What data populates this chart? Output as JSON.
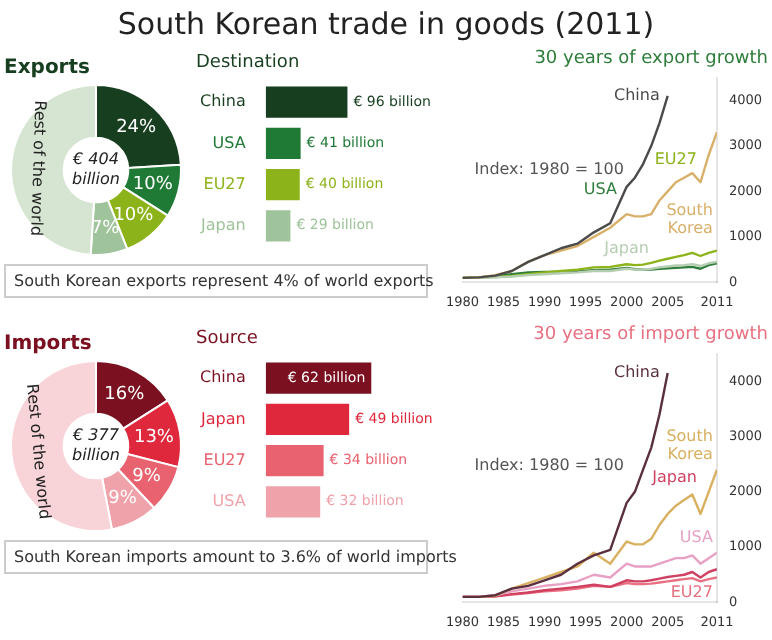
{
  "chart_data": [
    {
      "type": "donut",
      "title": "South Korean trade in goods (2011)",
      "subtitle": "Exports",
      "categories": [
        null,
        null,
        null,
        null,
        "Rest of the world"
      ],
      "values": [
        24,
        10,
        10,
        7,
        49
      ],
      "colors": [
        "#173f1f",
        "#1f7a35",
        "#8db31a",
        "#9fc39a",
        "#d6e5d2"
      ],
      "value_labels": [
        "24%",
        "10%",
        "10%",
        "7%",
        null
      ],
      "annotations": [
        "€ 404 billion",
        "South Korean exports represent 4% of world exports"
      ]
    },
    {
      "type": "bar",
      "orientation": "horizontal",
      "title": "Destination",
      "categories": [
        "China",
        "USA",
        "EU27",
        "Japan"
      ],
      "values": [
        96,
        41,
        40,
        29
      ],
      "colors": [
        "#173f1f",
        "#1f7a35",
        "#8db31a",
        "#9fc39a"
      ],
      "value_labels": [
        "€ 96 billion",
        "€ 41 billion",
        "€ 40 billion",
        "€ 29 billion"
      ],
      "tick_labels": "y"
    },
    {
      "type": "line",
      "title": "30 years of export growth",
      "x": [
        1980,
        1982,
        1984,
        1986,
        1988,
        1990,
        1992,
        1994,
        1996,
        1998,
        2000,
        2001,
        2002,
        2003,
        2004,
        2005,
        2006,
        2007,
        2008,
        2009,
        2010,
        2011
      ],
      "xlim": [
        1980,
        2011
      ],
      "xticks": [
        1980,
        1985,
        1990,
        1995,
        2000,
        2005,
        2011
      ],
      "ylim": [
        0,
        4500
      ],
      "yticks": [
        0,
        1000,
        2000,
        3000,
        4000
      ],
      "grid": false,
      "annotations": [
        "Index: 1980 = 100"
      ],
      "series": [
        {
          "name": "China",
          "color": "#4a4a4a",
          "values": [
            100,
            110,
            150,
            250,
            450,
            600,
            750,
            850,
            1100,
            1300,
            2100,
            2300,
            2600,
            3000,
            3500,
            4100,
            null,
            null,
            null,
            null,
            null,
            null
          ]
        },
        {
          "name": "South Korea",
          "color": "#d9b06a",
          "values": [
            100,
            110,
            160,
            250,
            450,
            600,
            700,
            800,
            1000,
            1200,
            1500,
            1450,
            1450,
            1500,
            1800,
            2000,
            2200,
            2300,
            2400,
            2200,
            2800,
            3300
          ]
        },
        {
          "name": "Japan",
          "color": "#b5cdb0",
          "values": [
            100,
            100,
            110,
            130,
            160,
            180,
            200,
            220,
            250,
            250,
            300,
            280,
            280,
            300,
            330,
            350,
            370,
            380,
            400,
            360,
            420,
            450
          ]
        },
        {
          "name": "EU27",
          "color": "#8db31a",
          "values": [
            100,
            110,
            120,
            140,
            180,
            220,
            250,
            280,
            330,
            340,
            400,
            380,
            390,
            430,
            480,
            520,
            560,
            600,
            650,
            580,
            650,
            700
          ]
        },
        {
          "name": "USA",
          "color": "#2e7d3a",
          "values": [
            100,
            110,
            140,
            180,
            220,
            230,
            230,
            240,
            270,
            280,
            320,
            290,
            280,
            280,
            300,
            310,
            320,
            330,
            340,
            300,
            380,
            420
          ]
        }
      ]
    },
    {
      "type": "donut",
      "title": "Imports",
      "categories": [
        null,
        null,
        null,
        null,
        "Rest of the world"
      ],
      "values": [
        16,
        13,
        9,
        9,
        53
      ],
      "colors": [
        "#7a1020",
        "#e0283c",
        "#e8626f",
        "#f0a2aa",
        "#f8d3d7"
      ],
      "value_labels": [
        "16%",
        "13%",
        "9%",
        "9%",
        null
      ],
      "annotations": [
        "€ 377 billion",
        "South Korean imports amount to 3.6% of world imports"
      ]
    },
    {
      "type": "bar",
      "orientation": "horizontal",
      "title": "Source",
      "categories": [
        "China",
        "Japan",
        "EU27",
        "USA"
      ],
      "values": [
        62,
        49,
        34,
        32
      ],
      "colors": [
        "#7a1020",
        "#e0283c",
        "#e8626f",
        "#f0a2aa"
      ],
      "value_labels": [
        "€ 62 billion",
        "€ 49 billion",
        "€ 34 billion",
        "€ 32 billion"
      ],
      "tick_labels": "y"
    },
    {
      "type": "line",
      "title": "30 years of import growth",
      "x": [
        1980,
        1982,
        1984,
        1986,
        1988,
        1990,
        1992,
        1994,
        1996,
        1998,
        2000,
        2001,
        2002,
        2003,
        2004,
        2005,
        2006,
        2007,
        2008,
        2009,
        2010,
        2011
      ],
      "xlim": [
        1980,
        2011
      ],
      "xticks": [
        1980,
        1985,
        1990,
        1995,
        2000,
        2005,
        2011
      ],
      "ylim": [
        0,
        4500
      ],
      "yticks": [
        0,
        1000,
        2000,
        3000,
        4000
      ],
      "grid": false,
      "annotations": [
        "Index: 1980 = 100"
      ],
      "series": [
        {
          "name": "China",
          "color": "#5a3040",
          "values": [
            100,
            100,
            130,
            250,
            300,
            400,
            500,
            700,
            850,
            950,
            1800,
            2000,
            2400,
            2800,
            3400,
            4150,
            null,
            null,
            null,
            null,
            null,
            null
          ]
        },
        {
          "name": "South Korea",
          "color": "#d8b060",
          "values": [
            100,
            100,
            120,
            250,
            350,
            450,
            550,
            650,
            900,
            700,
            1100,
            1050,
            1050,
            1150,
            1400,
            1600,
            1750,
            1850,
            1950,
            1600,
            2000,
            2400
          ]
        },
        {
          "name": "USA",
          "color": "#e8a0c4",
          "values": [
            100,
            100,
            130,
            200,
            250,
            300,
            330,
            380,
            500,
            450,
            700,
            650,
            650,
            650,
            700,
            750,
            800,
            800,
            850,
            700,
            800,
            900
          ]
        },
        {
          "name": "Japan",
          "color": "#d04060",
          "values": [
            100,
            100,
            110,
            150,
            180,
            220,
            250,
            280,
            320,
            280,
            400,
            380,
            380,
            400,
            430,
            460,
            480,
            500,
            550,
            450,
            550,
            600
          ]
        },
        {
          "name": "EU27",
          "color": "#e87080",
          "values": [
            100,
            100,
            110,
            140,
            170,
            200,
            220,
            250,
            300,
            280,
            350,
            330,
            330,
            340,
            360,
            380,
            400,
            420,
            440,
            380,
            420,
            450
          ]
        }
      ]
    }
  ]
}
